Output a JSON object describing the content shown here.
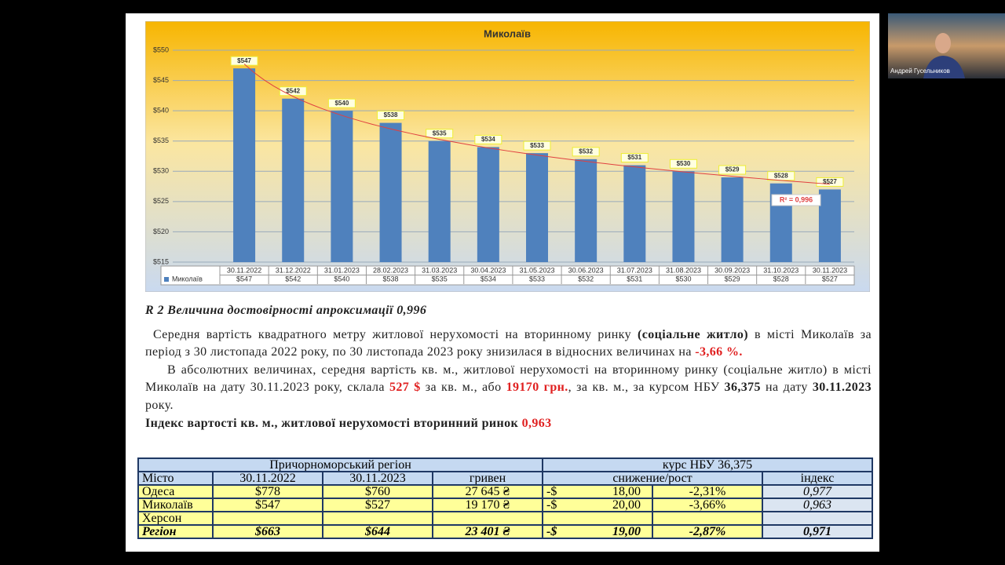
{
  "chart_data": {
    "type": "bar",
    "title": "Миколаїв",
    "categories": [
      "30.11.2022",
      "31.12.2022",
      "31.01.2023",
      "28.02.2023",
      "31.03.2023",
      "30.04.2023",
      "31.05.2023",
      "30.06.2023",
      "31.07.2023",
      "31.08.2023",
      "30.09.2023",
      "31.10.2023",
      "30.11.2023"
    ],
    "series": [
      {
        "name": "Миколаїв",
        "color": "#4f81bd",
        "values": [
          547,
          542,
          540,
          538,
          535,
          534,
          533,
          532,
          531,
          530,
          529,
          528,
          527
        ],
        "value_labels": [
          "$547",
          "$542",
          "$540",
          "$538",
          "$535",
          "$534",
          "$533",
          "$532",
          "$531",
          "$530",
          "$529",
          "$528",
          "$527"
        ]
      }
    ],
    "ylim": [
      515,
      550
    ],
    "yticks": [
      {
        "value": 515,
        "label": "$515"
      },
      {
        "value": 520,
        "label": "$520"
      },
      {
        "value": 525,
        "label": "$525"
      },
      {
        "value": 530,
        "label": "$530"
      },
      {
        "value": 535,
        "label": "$535"
      },
      {
        "value": 540,
        "label": "$540"
      },
      {
        "value": 545,
        "label": "$545"
      },
      {
        "value": 550,
        "label": "$550"
      }
    ],
    "grid": true,
    "trendline_label": "R² = 0,996",
    "trendline_color": "#e04040"
  },
  "document": {
    "heading": "R 2 Величина достовірності апроксимації 0,996",
    "paragraph1": [
      "Середня вартість квадратного метру житлової нерухомості на вторинному ринку ",
      "(соціальне житло)",
      " в місті Миколаїв за період з 30 листопада 2022 року, по 30 листопада 2023 року знизилася в відносних величинах на ",
      "-3,66 %."
    ],
    "paragraph2": [
      "В абсолютних величинах, середня вартість кв. м., житлової нерухомості на вторинному ринку (соціальне житло) в місті Миколаїв на дату 30.11.2023  року, склала ",
      "527 $",
      " за кв. м., або ",
      "19170 грн.",
      ", за кв. м., за курсом НБУ ",
      "36,375",
      " на дату ",
      "30.11.2023",
      " року."
    ],
    "index_line": [
      "Індекс вартості кв. м., житлової нерухомості вторинний ринок ",
      "0,963"
    ]
  },
  "table": {
    "header1": [
      "Причорноморський регіон",
      "курс НБУ 36,375"
    ],
    "header2": [
      "Місто",
      "30.11.2022",
      "30.11.2023",
      "гривен",
      "снижение/рост",
      "індекс"
    ],
    "rows": [
      [
        "Одеса",
        "$778",
        "$760",
        "27 645 ₴",
        "-$",
        "18,00",
        "-2,31%",
        "0,977"
      ],
      [
        "Миколаїв",
        "$547",
        "$527",
        "19 170 ₴",
        "-$",
        "20,00",
        "-3,66%",
        "0,963"
      ],
      [
        "Херсон"
      ],
      [
        "Регіон",
        "$663",
        "$644",
        "23 401 ₴",
        "-$",
        "19,00",
        "-2,87%",
        "0,971"
      ]
    ]
  },
  "participant": {
    "name": "Андрей Гусельников"
  }
}
